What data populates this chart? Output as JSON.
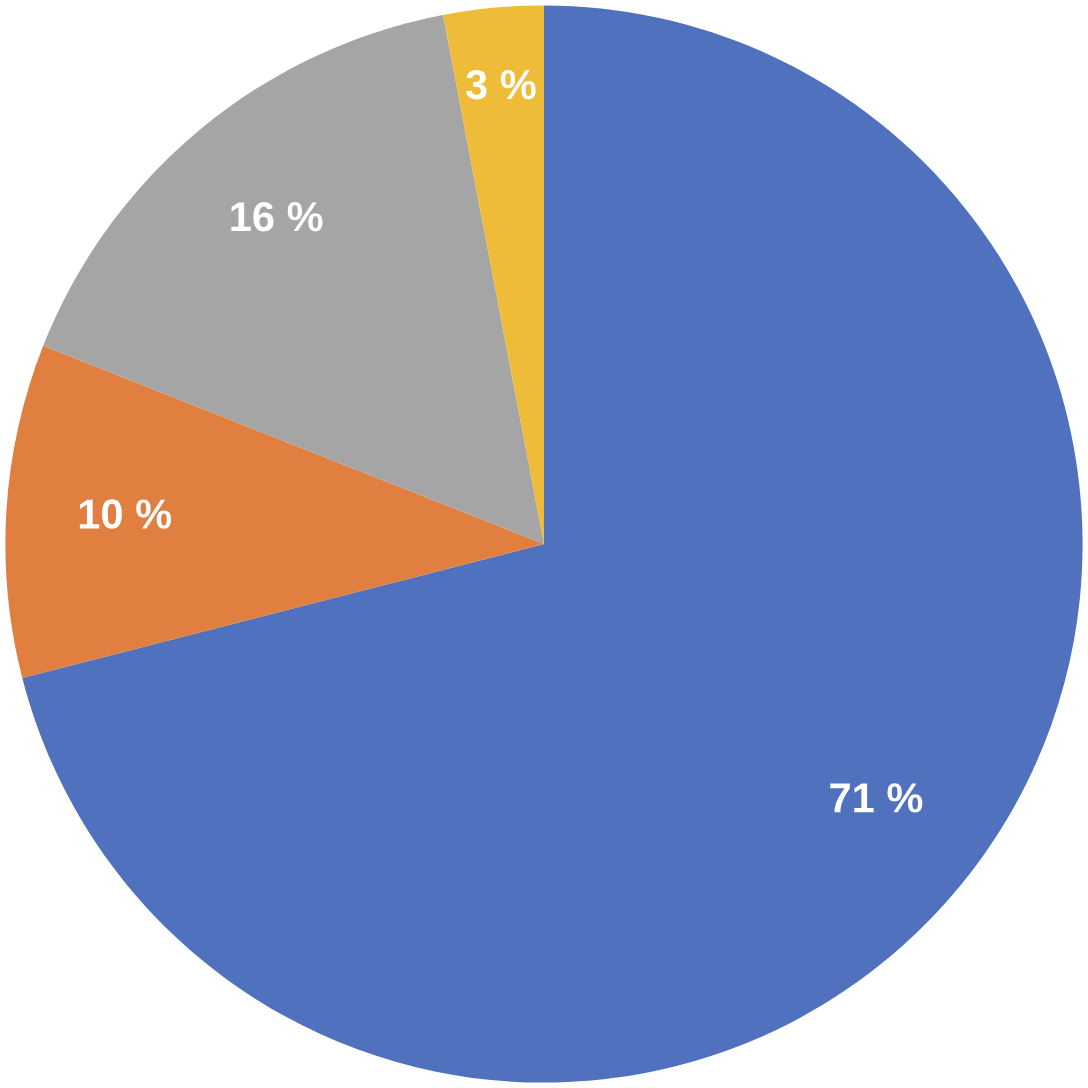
{
  "chart_data": {
    "type": "pie",
    "categories": [
      null,
      null,
      null,
      null
    ],
    "values": [
      71,
      10,
      16,
      3
    ],
    "colors": [
      "#4f71be",
      "#e07f3f",
      "#a5a5a5",
      "#efbc3a"
    ],
    "value_labels": [
      "71 %",
      "10 %",
      "16 %",
      "3 %"
    ]
  }
}
